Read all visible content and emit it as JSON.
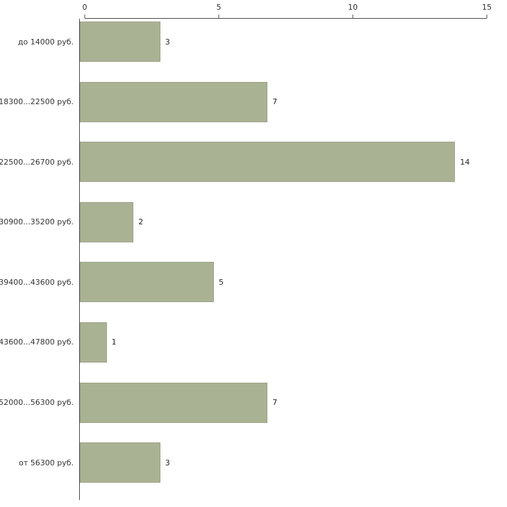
{
  "chart_data": {
    "type": "bar",
    "orientation": "horizontal",
    "title": "",
    "xlabel": "",
    "ylabel": "",
    "categories": [
      "до 14000 руб.",
      "18300...22500 руб.",
      "22500...26700 руб.",
      "30900...35200 руб.",
      "39400...43600 руб.",
      "43600...47800 руб.",
      "52000...56300 руб.",
      "от 56300 руб."
    ],
    "values": [
      3,
      7,
      14,
      2,
      5,
      1,
      7,
      3
    ],
    "xlim": [
      0,
      15
    ],
    "x_ticks": [
      0,
      5,
      10,
      15
    ],
    "value_labels": true,
    "grid": false,
    "legend": false,
    "bar_color": "#aab294",
    "axis_color": "#4a4a4a",
    "text_color": "#333333",
    "background_color": "#ffffff"
  }
}
